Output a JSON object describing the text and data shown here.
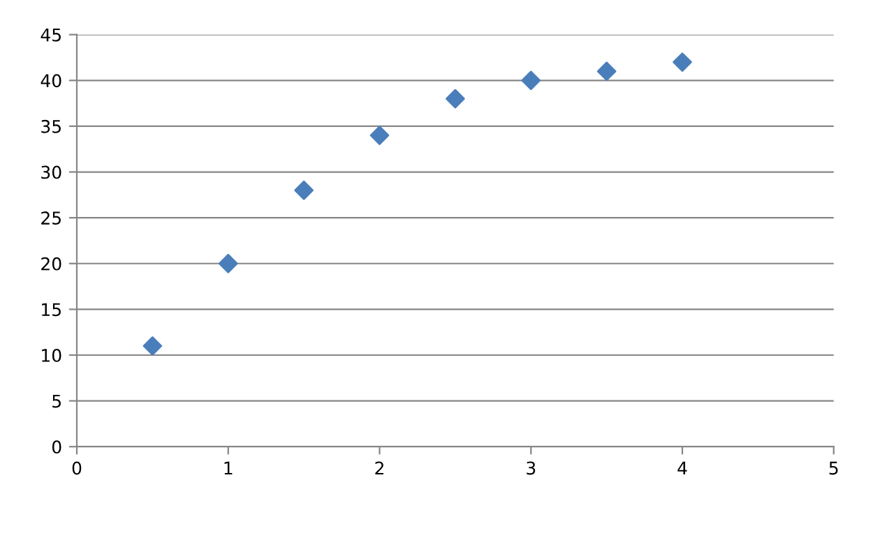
{
  "chart_data": {
    "type": "scatter",
    "x": [
      0.5,
      1,
      1.5,
      2,
      2.5,
      3,
      3.5,
      4
    ],
    "series": [
      {
        "color": "#4a7ebb",
        "values": [
          11,
          20,
          28,
          34,
          38,
          40,
          41,
          42
        ]
      }
    ],
    "xlim": [
      0,
      5
    ],
    "xticks": [
      0,
      1,
      2,
      3,
      4,
      5
    ],
    "ylim": [
      0,
      45
    ],
    "yticks": [
      0,
      5,
      10,
      15,
      20,
      25,
      30,
      35,
      40,
      45
    ],
    "grid": "y",
    "marker": "diamond",
    "legend": false
  }
}
